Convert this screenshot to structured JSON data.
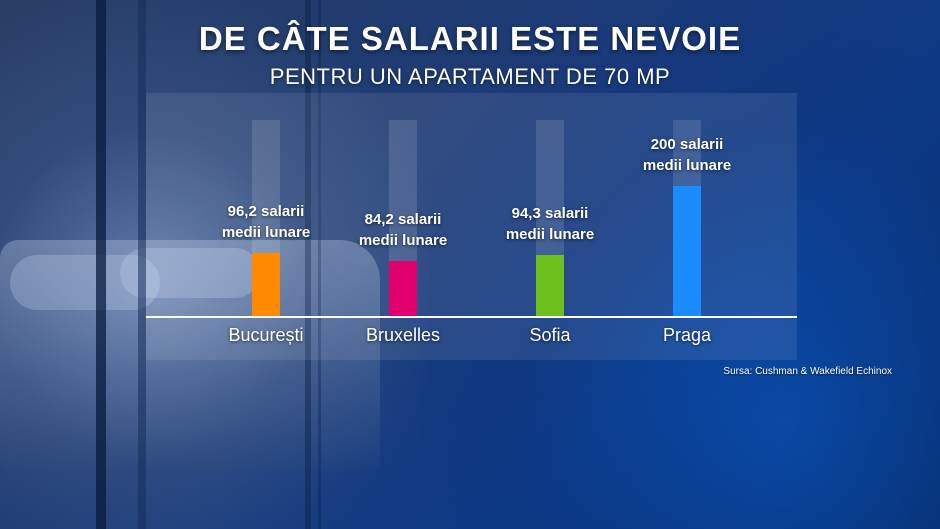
{
  "title": "DE CÂTE SALARII ESTE NEVOIE",
  "subtitle": "PENTRU UN APARTAMENT DE 70 MP",
  "source": "Sursa: Cushman & Wakefield Echinox",
  "chart_data": {
    "type": "bar",
    "categories": [
      "București",
      "Bruxelles",
      "Sofia",
      "Praga"
    ],
    "values": [
      96.2,
      84.2,
      94.3,
      200
    ],
    "value_labels": [
      [
        "96,2 salarii",
        "medii lunare"
      ],
      [
        "84,2 salarii",
        "medii lunare"
      ],
      [
        "94,3 salarii",
        "medii lunare"
      ],
      [
        "200 salarii",
        "medii lunare"
      ]
    ],
    "colors": [
      "#ff8a00",
      "#e0006e",
      "#6cc11c",
      "#1a8cff"
    ],
    "ylim": [
      0,
      320
    ],
    "grid": false,
    "legend": "none"
  }
}
